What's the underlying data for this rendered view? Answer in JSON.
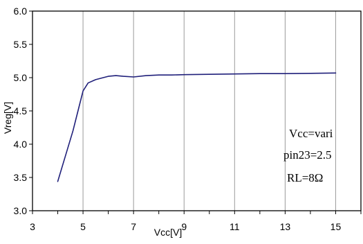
{
  "chart_data": {
    "type": "line",
    "title": "",
    "xlabel": "Vcc[V]",
    "ylabel": "Vreg[V]",
    "xlim": [
      3,
      16
    ],
    "ylim": [
      3.0,
      6.0
    ],
    "x_ticks": [
      3,
      5,
      7,
      9,
      11,
      13,
      15
    ],
    "y_ticks": [
      3.0,
      3.5,
      4.0,
      4.5,
      5.0,
      5.5,
      6.0
    ],
    "y_tick_labels": [
      "3.0",
      "3.5",
      "4.0",
      "4.5",
      "5.0",
      "5.5",
      "6.0"
    ],
    "grid": "vertical",
    "legend": "none",
    "series": [
      {
        "color": "#1f1f7a",
        "x": [
          4.0,
          4.3,
          4.6,
          4.8,
          5.0,
          5.2,
          5.5,
          5.8,
          6.0,
          6.3,
          6.6,
          7.0,
          7.5,
          8.0,
          8.5,
          9.0,
          10.0,
          11.0,
          12.0,
          13.0,
          14.0,
          15.0
        ],
        "y": [
          3.44,
          3.82,
          4.2,
          4.5,
          4.8,
          4.92,
          4.97,
          5.0,
          5.02,
          5.03,
          5.02,
          5.01,
          5.03,
          5.04,
          5.04,
          5.045,
          5.05,
          5.055,
          5.06,
          5.06,
          5.065,
          5.07
        ]
      }
    ],
    "annotations": [
      "Vcc=vari",
      "pin23=2.5",
      "RL=8Ω"
    ]
  }
}
